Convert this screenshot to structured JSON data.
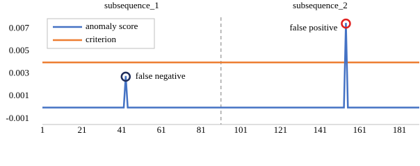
{
  "chart_data": {
    "type": "line",
    "section_labels": [
      "subsequence_1",
      "subsequence_2"
    ],
    "divider_x": 91,
    "series": [
      {
        "name": "anomaly score",
        "color": "#4472c4",
        "x": [
          1,
          42,
          43,
          44,
          153,
          154,
          155,
          191
        ],
        "values": [
          0,
          0,
          0.0028,
          0,
          0,
          0.0075,
          0,
          0
        ]
      },
      {
        "name": "criterion",
        "color": "#ed7d31",
        "x": [
          1,
          191
        ],
        "values": [
          0.004,
          0.004
        ]
      }
    ],
    "annotations": [
      {
        "text": "false negative",
        "x": 43,
        "y": 0.0028,
        "color": "#1f2d5c"
      },
      {
        "text": "false positive",
        "x": 154,
        "y": 0.0075,
        "color": "#e02020"
      }
    ],
    "xlim": [
      1,
      191
    ],
    "xticks": [
      1,
      21,
      41,
      61,
      81,
      101,
      121,
      141,
      161,
      181
    ],
    "ylim": [
      -0.0015,
      0.008
    ],
    "yticks": [
      -0.001,
      0.001,
      0.003,
      0.005,
      0.007
    ],
    "legend": "upper left"
  }
}
